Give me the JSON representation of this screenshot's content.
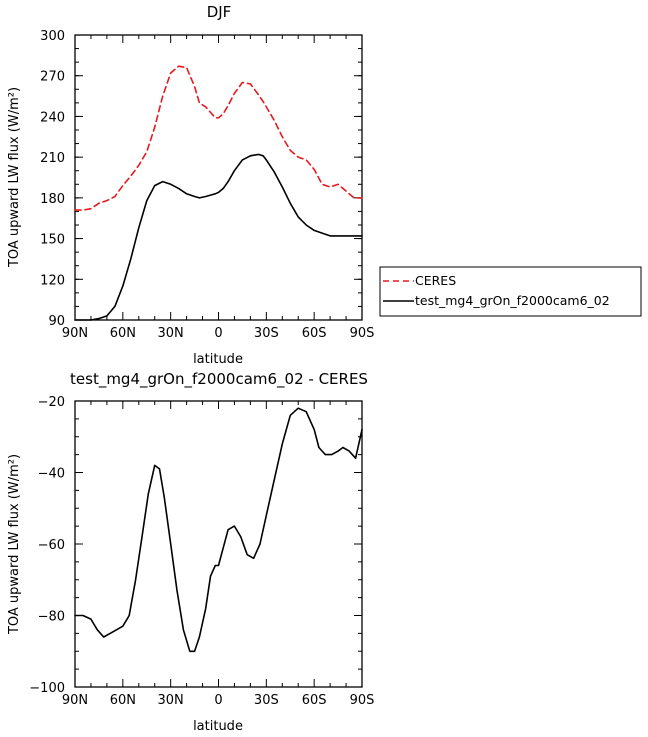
{
  "chart_data": [
    {
      "type": "line",
      "title": "DJF",
      "xlabel": "latitude",
      "ylabel": "TOA upward LW flux (W/m²)",
      "xlim": [
        90,
        -90
      ],
      "ylim": [
        90,
        300
      ],
      "x_ticks": [
        90,
        60,
        30,
        0,
        -30,
        -60,
        -90
      ],
      "x_tick_labels": [
        "90N",
        "60N",
        "30N",
        "0",
        "30S",
        "60S",
        "90S"
      ],
      "y_ticks": [
        90,
        120,
        150,
        180,
        210,
        240,
        270,
        300
      ],
      "y_tick_labels": [
        "90",
        "120",
        "150",
        "180",
        "210",
        "240",
        "270",
        "300"
      ],
      "legend": {
        "placement": "right"
      },
      "x": [
        90,
        85,
        80,
        75,
        70,
        65,
        60,
        55,
        50,
        45,
        40,
        35,
        30,
        25,
        20,
        15,
        12,
        8,
        5,
        2,
        0,
        -3,
        -6,
        -10,
        -15,
        -20,
        -25,
        -28,
        -30,
        -35,
        -40,
        -45,
        -50,
        -55,
        -60,
        -65,
        -70,
        -75,
        -80,
        -85,
        -88,
        -90
      ],
      "series": [
        {
          "name": "CERES",
          "color": "#e8191e",
          "dash": "dashed",
          "values": [
            171,
            171,
            172,
            176,
            178,
            181,
            189,
            196,
            204,
            214,
            232,
            255,
            272,
            277,
            276,
            262,
            250,
            247,
            243,
            239,
            239,
            242,
            248,
            257,
            265,
            264,
            256,
            251,
            247,
            237,
            225,
            215,
            210,
            208,
            201,
            190,
            188,
            190,
            185,
            180,
            180,
            180
          ]
        },
        {
          "name": "test_mg4_grOn_f2000cam6_02",
          "color": "#000000",
          "dash": "solid",
          "values": [
            90,
            90,
            90,
            91,
            93,
            100,
            115,
            135,
            158,
            178,
            189,
            192,
            190,
            187,
            183,
            181,
            180,
            181,
            182,
            183,
            184,
            187,
            192,
            200,
            208,
            211,
            212,
            211,
            208,
            199,
            188,
            176,
            166,
            160,
            156,
            154,
            152,
            152,
            152,
            152,
            152,
            152
          ]
        }
      ]
    },
    {
      "type": "line",
      "title": "test_mg4_grOn_f2000cam6_02 - CERES",
      "xlabel": "latitude",
      "ylabel": "TOA upward LW flux (W/m²)",
      "xlim": [
        90,
        -90
      ],
      "ylim": [
        -100,
        -20
      ],
      "x_ticks": [
        90,
        60,
        30,
        0,
        -30,
        -60,
        -90
      ],
      "x_tick_labels": [
        "90N",
        "60N",
        "30N",
        "0",
        "30S",
        "60S",
        "90S"
      ],
      "y_ticks": [
        -100,
        -80,
        -60,
        -40,
        -20
      ],
      "y_tick_labels": [
        "−100",
        "−80",
        "−60",
        "−40",
        "−20"
      ],
      "x": [
        90,
        85,
        80,
        76,
        72,
        68,
        64,
        60,
        56,
        52,
        48,
        44,
        40,
        37,
        34,
        30,
        26,
        22,
        18,
        15,
        12,
        8,
        5,
        2,
        0,
        -3,
        -6,
        -10,
        -14,
        -18,
        -22,
        -26,
        -30,
        -35,
        -40,
        -45,
        -50,
        -55,
        -60,
        -63,
        -67,
        -71,
        -75,
        -78,
        -82,
        -86,
        -90
      ],
      "series": [
        {
          "name": "",
          "color": "#000000",
          "dash": "solid",
          "values": [
            -80,
            -80,
            -81,
            -84,
            -86,
            -85,
            -84,
            -83,
            -80,
            -70,
            -58,
            -46,
            -38,
            -39,
            -47,
            -60,
            -73,
            -84,
            -90,
            -90,
            -86,
            -78,
            -69,
            -66,
            -66,
            -61,
            -56,
            -55,
            -58,
            -63,
            -64,
            -60,
            -52,
            -42,
            -32,
            -24,
            -22,
            -23,
            -28,
            -33,
            -35,
            -35,
            -34,
            -33,
            -34,
            -36,
            -28
          ]
        }
      ]
    }
  ]
}
